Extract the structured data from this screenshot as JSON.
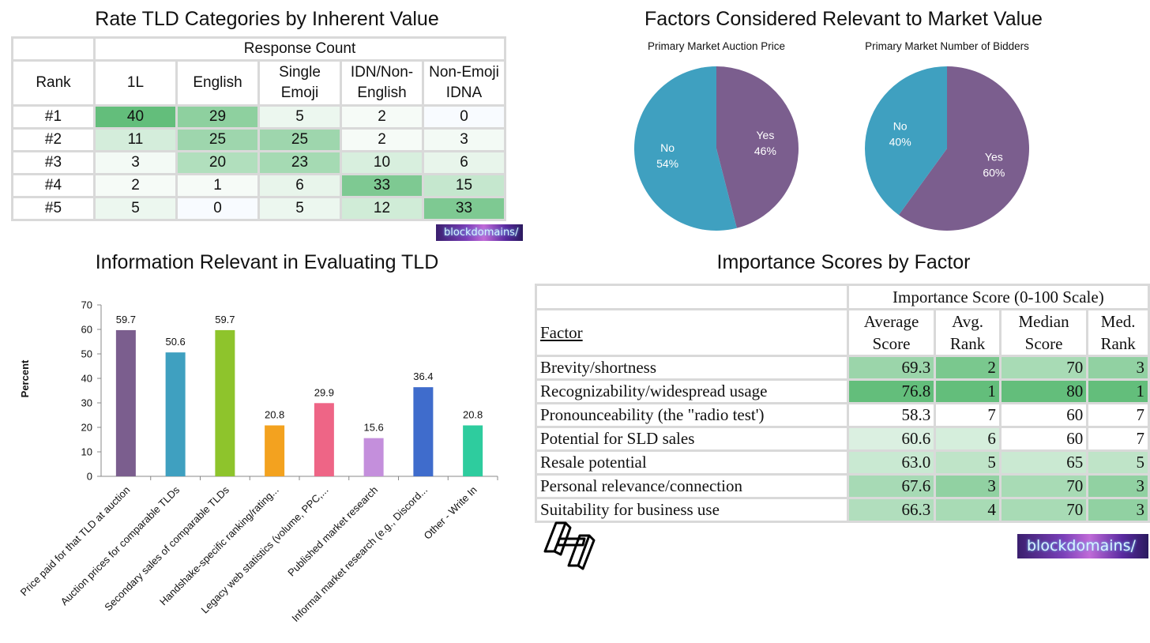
{
  "titles": {
    "rank": "Rate TLD Categories by Inherent Value",
    "factors": "Factors Considered Relevant to Market Value",
    "info": "Information Relevant in Evaluating TLD",
    "importance": "Importance Scores by Factor"
  },
  "rank_table": {
    "group_header": "Response Count",
    "rank_header": "Rank",
    "columns": [
      [
        "1L"
      ],
      [
        "English"
      ],
      [
        "Single",
        "Emoji"
      ],
      [
        "IDN/Non-",
        "English"
      ],
      [
        "Non-Emoji",
        "IDNA"
      ]
    ],
    "rows": [
      {
        "rank": "#1",
        "values": [
          40,
          29,
          5,
          2,
          0
        ]
      },
      {
        "rank": "#2",
        "values": [
          11,
          25,
          25,
          2,
          3
        ]
      },
      {
        "rank": "#3",
        "values": [
          3,
          20,
          23,
          10,
          6
        ]
      },
      {
        "rank": "#4",
        "values": [
          2,
          1,
          6,
          33,
          15
        ]
      },
      {
        "rank": "#5",
        "values": [
          5,
          0,
          5,
          12,
          33
        ]
      }
    ]
  },
  "importance_table": {
    "group_header": "Importance Score (0-100 Scale)",
    "factor_header": "Factor",
    "columns": [
      [
        "Average",
        "Score"
      ],
      [
        "Avg.",
        "Rank"
      ],
      [
        "Median",
        "Score"
      ],
      [
        "Med.",
        "Rank"
      ]
    ],
    "rows": [
      {
        "factor": "Brevity/shortness",
        "values": [
          "69.3",
          "2",
          "70",
          "3"
        ]
      },
      {
        "factor": "Recognizability/widespread usage",
        "values": [
          "76.8",
          "1",
          "80",
          "1"
        ]
      },
      {
        "factor": "Pronounceability (the \"radio test')",
        "values": [
          "58.3",
          "7",
          "60",
          "7"
        ]
      },
      {
        "factor": "Potential for SLD sales",
        "values": [
          "60.6",
          "6",
          "60",
          "7"
        ]
      },
      {
        "factor": "Resale potential",
        "values": [
          "63.0",
          "5",
          "65",
          "5"
        ]
      },
      {
        "factor": "Personal relevance/connection",
        "values": [
          "67.6",
          "3",
          "70",
          "3"
        ]
      },
      {
        "factor": "Suitability for business use",
        "values": [
          "66.3",
          "4",
          "70",
          "3"
        ]
      }
    ]
  },
  "brand": {
    "text": "blockdomains/"
  },
  "colors": {
    "green_strong": "#63be7b",
    "white": "#ffffff"
  },
  "chart_data": [
    {
      "type": "pie",
      "title": "Primary Market Auction Price",
      "slices": [
        {
          "label": "Yes",
          "value": 46,
          "color": "#7b5e8e"
        },
        {
          "label": "No",
          "value": 54,
          "color": "#3fa0c0"
        }
      ]
    },
    {
      "type": "pie",
      "title": "Primary Market Number of Bidders",
      "slices": [
        {
          "label": "Yes",
          "value": 60,
          "color": "#7b5e8e"
        },
        {
          "label": "No",
          "value": 40,
          "color": "#3fa0c0"
        }
      ]
    },
    {
      "type": "bar",
      "categories": [
        "Price paid for that TLD at auction",
        "Auction prices for comparable TLDs",
        "Secondary sales of comparable TLDs",
        "Handshake-specific ranking/rating...",
        "Legacy web statistics (volume, PPC,...",
        "Published market research",
        "Informal market research (e.g., Discord...",
        "Other - Write In"
      ],
      "values": [
        59.7,
        50.6,
        59.7,
        20.8,
        29.9,
        15.6,
        36.4,
        20.8
      ],
      "colors": [
        "#7b5e8e",
        "#3fa0c0",
        "#8ec42c",
        "#f3a21f",
        "#ee6586",
        "#c48fdc",
        "#3f6ccc",
        "#2ecc9e"
      ],
      "ylabel": "Percent",
      "ylim": [
        0,
        70
      ],
      "yticks": [
        0,
        10,
        20,
        30,
        40,
        50,
        60,
        70
      ]
    }
  ]
}
